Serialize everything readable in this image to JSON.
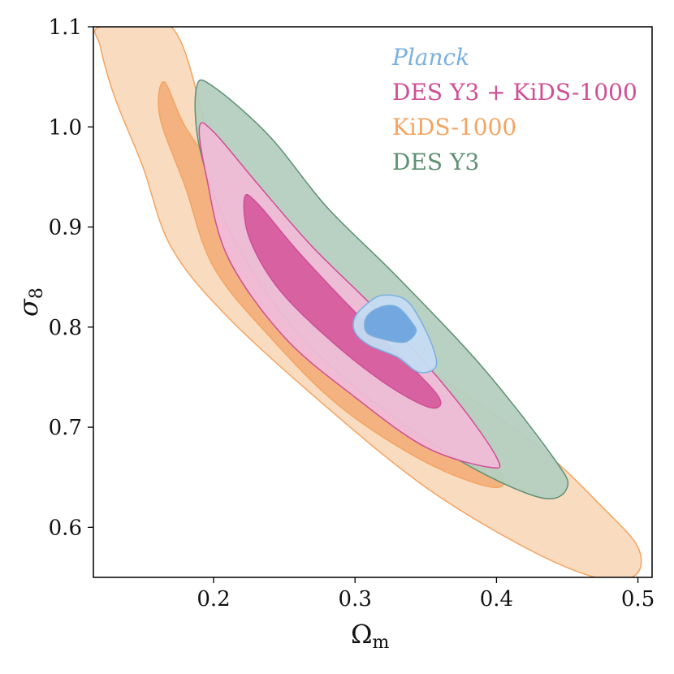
{
  "chart_data": {
    "type": "contour",
    "title": "",
    "xlabel": "Ω",
    "xlabel_sub": "m",
    "ylabel": "σ",
    "ylabel_sub": "8",
    "xlim": [
      0.115,
      0.51
    ],
    "ylim": [
      0.55,
      1.1
    ],
    "x_ticks": [
      0.2,
      0.3,
      0.4,
      0.5
    ],
    "x_tick_labels": [
      "0.2",
      "0.3",
      "0.4",
      "0.5"
    ],
    "y_ticks": [
      0.6,
      0.7,
      0.8,
      0.9,
      1.0,
      1.1
    ],
    "y_tick_labels": [
      "0.6",
      "0.7",
      "0.8",
      "0.9",
      "1.0",
      "1.1"
    ],
    "grid": false,
    "legend_position": "top-right",
    "series": [
      {
        "name": "KiDS-1000",
        "italic": false,
        "color": "#f4a460",
        "fill_outer": "#f9d9bc",
        "fill_inner": "#f2b07c",
        "contour_95": [
          [
            0.12,
            1.1
          ],
          [
            0.17,
            1.1
          ],
          [
            0.195,
            1.0
          ],
          [
            0.21,
            0.96
          ],
          [
            0.22,
            0.925
          ],
          [
            0.25,
            0.865
          ],
          [
            0.3,
            0.805
          ],
          [
            0.36,
            0.75
          ],
          [
            0.43,
            0.68
          ],
          [
            0.475,
            0.62
          ],
          [
            0.5,
            0.58
          ],
          [
            0.498,
            0.552
          ],
          [
            0.47,
            0.55
          ],
          [
            0.42,
            0.58
          ],
          [
            0.35,
            0.64
          ],
          [
            0.28,
            0.72
          ],
          [
            0.21,
            0.81
          ],
          [
            0.17,
            0.88
          ],
          [
            0.15,
            0.96
          ],
          [
            0.13,
            1.03
          ],
          [
            0.12,
            1.08
          ]
        ],
        "contour_68": [
          [
            0.165,
            1.045
          ],
          [
            0.18,
            1.0
          ],
          [
            0.205,
            0.95
          ],
          [
            0.245,
            0.87
          ],
          [
            0.29,
            0.81
          ],
          [
            0.35,
            0.74
          ],
          [
            0.4,
            0.66
          ],
          [
            0.398,
            0.64
          ],
          [
            0.35,
            0.665
          ],
          [
            0.29,
            0.72
          ],
          [
            0.24,
            0.79
          ],
          [
            0.2,
            0.86
          ],
          [
            0.18,
            0.94
          ],
          [
            0.162,
            1.01
          ]
        ]
      },
      {
        "name": "DES Y3",
        "italic": false,
        "color": "#5e9072",
        "fill_outer": "#b5cfbf",
        "fill_inner": "#6e9f80",
        "contour_95": [
          [
            0.188,
            1.04
          ],
          [
            0.2,
            1.04
          ],
          [
            0.24,
            0.99
          ],
          [
            0.28,
            0.92
          ],
          [
            0.33,
            0.85
          ],
          [
            0.39,
            0.76
          ],
          [
            0.44,
            0.67
          ],
          [
            0.45,
            0.64
          ],
          [
            0.43,
            0.63
          ],
          [
            0.37,
            0.67
          ],
          [
            0.3,
            0.74
          ],
          [
            0.25,
            0.81
          ],
          [
            0.21,
            0.9
          ],
          [
            0.19,
            0.98
          ]
        ],
        "contour_68": []
      },
      {
        "name": "DES Y3 + KiDS-1000",
        "italic": false,
        "color": "#cf4f95",
        "fill_outer": "#efbcd7",
        "fill_inner": "#d75c9e",
        "contour_95": [
          [
            0.19,
            1.0
          ],
          [
            0.2,
            0.995
          ],
          [
            0.23,
            0.945
          ],
          [
            0.27,
            0.88
          ],
          [
            0.32,
            0.81
          ],
          [
            0.37,
            0.73
          ],
          [
            0.4,
            0.67
          ],
          [
            0.395,
            0.66
          ],
          [
            0.35,
            0.68
          ],
          [
            0.3,
            0.73
          ],
          [
            0.25,
            0.79
          ],
          [
            0.21,
            0.87
          ],
          [
            0.195,
            0.95
          ]
        ],
        "contour_68": [
          [
            0.222,
            0.93
          ],
          [
            0.232,
            0.922
          ],
          [
            0.26,
            0.875
          ],
          [
            0.3,
            0.815
          ],
          [
            0.34,
            0.76
          ],
          [
            0.36,
            0.728
          ],
          [
            0.352,
            0.72
          ],
          [
            0.32,
            0.745
          ],
          [
            0.28,
            0.79
          ],
          [
            0.245,
            0.84
          ],
          [
            0.225,
            0.89
          ]
        ]
      },
      {
        "name": "Planck",
        "italic": true,
        "color": "#7ab0e0",
        "fill_outer": "#c4dbf2",
        "fill_inner": "#6fa4de",
        "contour_95": [
          [
            0.3,
            0.81
          ],
          [
            0.31,
            0.825
          ],
          [
            0.32,
            0.832
          ],
          [
            0.335,
            0.828
          ],
          [
            0.345,
            0.81
          ],
          [
            0.355,
            0.78
          ],
          [
            0.357,
            0.76
          ],
          [
            0.345,
            0.755
          ],
          [
            0.33,
            0.77
          ],
          [
            0.31,
            0.782
          ],
          [
            0.3,
            0.795
          ]
        ],
        "contour_68": [
          [
            0.308,
            0.81
          ],
          [
            0.318,
            0.82
          ],
          [
            0.33,
            0.82
          ],
          [
            0.34,
            0.805
          ],
          [
            0.343,
            0.795
          ],
          [
            0.335,
            0.785
          ],
          [
            0.32,
            0.788
          ],
          [
            0.308,
            0.795
          ]
        ]
      }
    ]
  }
}
